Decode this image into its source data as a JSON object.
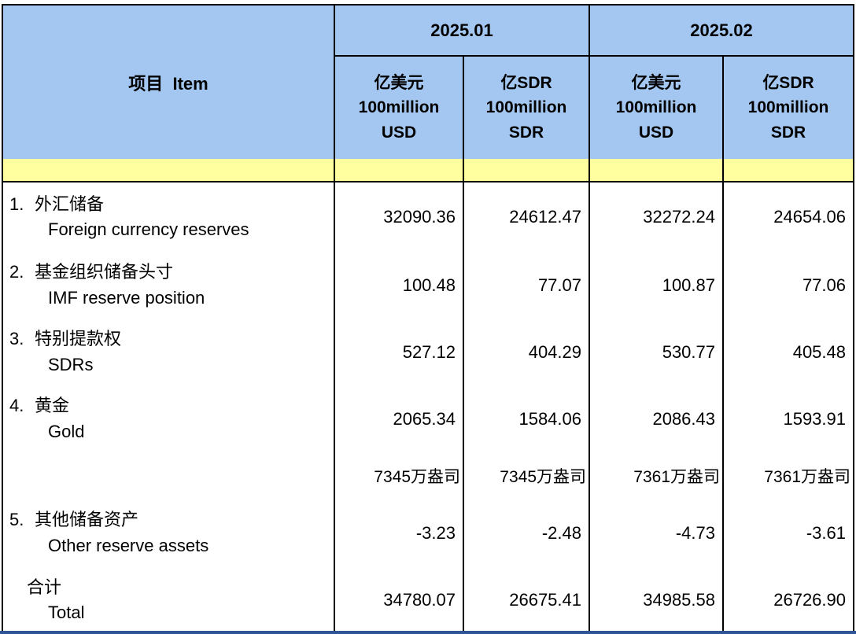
{
  "header": {
    "item_label": "项目  Item",
    "groups": [
      {
        "month": "2025.01"
      },
      {
        "month": "2025.02"
      }
    ],
    "unit_cells": [
      "亿美元\n100million\nUSD",
      "亿SDR\n100million\nSDR",
      "亿美元\n100million\nUSD",
      "亿SDR\n100million\nSDR"
    ]
  },
  "rows": [
    {
      "num": "1.",
      "zh": "外汇储备",
      "en": "Foreign currency reserves",
      "values": [
        "32090.36",
        "24612.47",
        "32272.24",
        "24654.06"
      ]
    },
    {
      "num": "2.",
      "zh": "基金组织储备头寸",
      "en": "IMF reserve position",
      "values": [
        "100.48",
        "77.07",
        "100.87",
        "77.06"
      ]
    },
    {
      "num": "3.",
      "zh": "特别提款权",
      "en": "SDRs",
      "values": [
        "527.12",
        "404.29",
        "530.77",
        "405.48"
      ]
    },
    {
      "num": "4.",
      "zh": "黄金",
      "en": "Gold",
      "values": [
        "2065.34",
        "1584.06",
        "2086.43",
        "1593.91"
      ]
    },
    {
      "num": "",
      "zh": "",
      "en": "",
      "values": [
        "7345万盎司",
        "7345万盎司",
        "7361万盎司",
        "7361万盎司"
      ]
    },
    {
      "num": "5.",
      "zh": "其他储备资产",
      "en": "Other reserve assets",
      "values": [
        "-3.23",
        "-2.48",
        "-4.73",
        "-3.61"
      ]
    },
    {
      "num": "",
      "zh": "合计",
      "en": "Total",
      "values": [
        "34780.07",
        "26675.41",
        "34985.58",
        "26726.90"
      ]
    }
  ],
  "colors": {
    "header_blue": "#A3C7F0",
    "separator_yellow": "#FFFFA0",
    "border_black": "#000000",
    "bottom_strip_blue": "#2F5597",
    "background_white": "#FFFFFF"
  }
}
